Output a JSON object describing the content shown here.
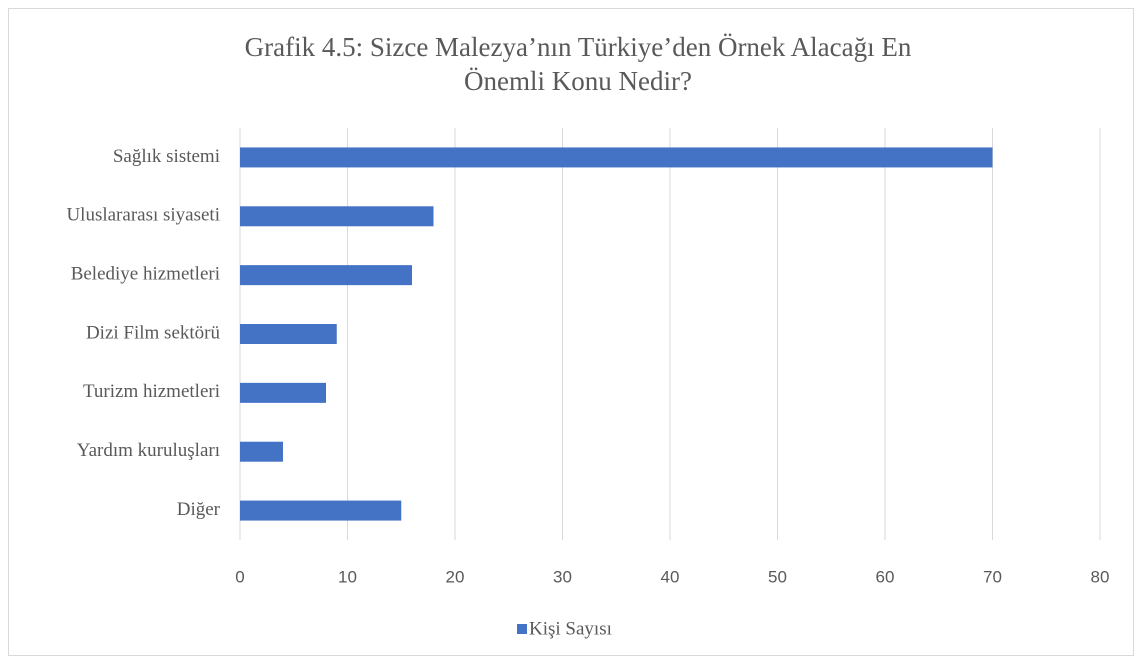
{
  "chart_data": {
    "type": "bar",
    "orientation": "horizontal",
    "title": [
      "Grafik 4.5: Sizce Malezya’nın Türkiye’den Örnek Alacağı En",
      "Önemli Konu Nedir?"
    ],
    "categories": [
      "Sağlık sistemi",
      "Uluslararası siyaseti",
      "Belediye hizmetleri",
      "Dizi Film sektörü",
      "Turizm hizmetleri",
      "Yardım kuruluşları",
      "Diğer"
    ],
    "series": [
      {
        "name": "Kişi Sayısı",
        "color": "#4472c4",
        "values": [
          70,
          18,
          16,
          9,
          8,
          4,
          15
        ]
      }
    ],
    "xlim": [
      0,
      80
    ],
    "xticks": [
      0,
      10,
      20,
      30,
      40,
      50,
      60,
      70,
      80
    ],
    "grid": true,
    "legend": "bottom"
  }
}
